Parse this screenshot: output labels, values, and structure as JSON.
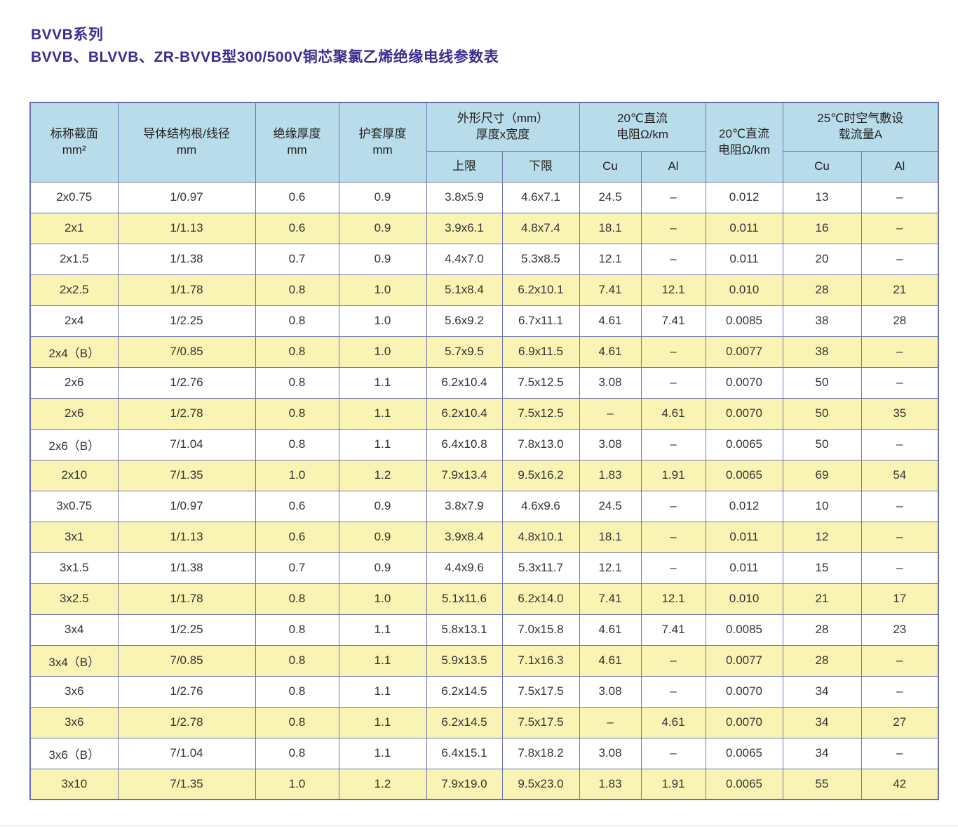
{
  "page": {
    "title_line1": "BVVB系列",
    "title_line2": "BVVB、BLVVB、ZR-BVVB型300/500V铜芯聚氯乙烯绝缘电线参数表"
  },
  "colors": {
    "title": "#3b2d8e",
    "header_bg": "#b9dcea",
    "row_alt_bg": "#faf4b4",
    "row_bg": "#ffffff",
    "border": "#7076b0",
    "outer_border": "#6a70ad"
  },
  "table": {
    "headers": {
      "nominal_section": {
        "line1": "标称截面",
        "line2": "mm²"
      },
      "conductor": {
        "line1": "导体结构根/线径",
        "line2": "mm"
      },
      "insulation": {
        "line1": "绝缘厚度",
        "line2": "mm"
      },
      "sheath": {
        "line1": "护套厚度",
        "line2": "mm"
      },
      "dimensions": {
        "line1": "外形尺寸（mm）",
        "line2": "厚度x宽度",
        "sub_upper": "上限",
        "sub_lower": "下限"
      },
      "dc_resistance": {
        "line1": "20℃直流",
        "line2": "电阻Ω/km",
        "sub_cu": "Cu",
        "sub_al": "Al"
      },
      "dc_resistance2": {
        "line1": "20℃直流",
        "line2": "电阻Ω/km"
      },
      "ampacity": {
        "line1": "25℃时空气敷设",
        "line2": "载流量A",
        "sub_cu": "Cu",
        "sub_al": "Al"
      }
    },
    "rows": [
      [
        "2x0.75",
        "1/0.97",
        "0.6",
        "0.9",
        "3.8x5.9",
        "4.6x7.1",
        "24.5",
        "–",
        "0.012",
        "13",
        "–"
      ],
      [
        "2x1",
        "1/1.13",
        "0.6",
        "0.9",
        "3.9x6.1",
        "4.8x7.4",
        "18.1",
        "–",
        "0.011",
        "16",
        "–"
      ],
      [
        "2x1.5",
        "1/1.38",
        "0.7",
        "0.9",
        "4.4x7.0",
        "5.3x8.5",
        "12.1",
        "–",
        "0.011",
        "20",
        "–"
      ],
      [
        "2x2.5",
        "1/1.78",
        "0.8",
        "1.0",
        "5.1x8.4",
        "6.2x10.1",
        "7.41",
        "12.1",
        "0.010",
        "28",
        "21"
      ],
      [
        "2x4",
        "1/2.25",
        "0.8",
        "1.0",
        "5.6x9.2",
        "6.7x11.1",
        "4.61",
        "7.41",
        "0.0085",
        "38",
        "28"
      ],
      [
        "2x4（B）",
        "7/0.85",
        "0.8",
        "1.0",
        "5.7x9.5",
        "6.9x11.5",
        "4.61",
        "–",
        "0.0077",
        "38",
        "–"
      ],
      [
        "2x6",
        "1/2.76",
        "0.8",
        "1.1",
        "6.2x10.4",
        "7.5x12.5",
        "3.08",
        "–",
        "0.0070",
        "50",
        "–"
      ],
      [
        "2x6",
        "1/2.78",
        "0.8",
        "1.1",
        "6.2x10.4",
        "7.5x12.5",
        "–",
        "4.61",
        "0.0070",
        "50",
        "35"
      ],
      [
        "2x6（B）",
        "7/1.04",
        "0.8",
        "1.1",
        "6.4x10.8",
        "7.8x13.0",
        "3.08",
        "–",
        "0.0065",
        "50",
        "–"
      ],
      [
        "2x10",
        "7/1.35",
        "1.0",
        "1.2",
        "7.9x13.4",
        "9.5x16.2",
        "1.83",
        "1.91",
        "0.0065",
        "69",
        "54"
      ],
      [
        "3x0.75",
        "1/0.97",
        "0.6",
        "0.9",
        "3.8x7.9",
        "4.6x9.6",
        "24.5",
        "–",
        "0.012",
        "10",
        "–"
      ],
      [
        "3x1",
        "1/1.13",
        "0.6",
        "0.9",
        "3.9x8.4",
        "4.8x10.1",
        "18.1",
        "–",
        "0.011",
        "12",
        "–"
      ],
      [
        "3x1.5",
        "1/1.38",
        "0.7",
        "0.9",
        "4.4x9.6",
        "5.3x11.7",
        "12.1",
        "–",
        "0.011",
        "15",
        "–"
      ],
      [
        "3x2.5",
        "1/1.78",
        "0.8",
        "1.0",
        "5.1x11.6",
        "6.2x14.0",
        "7.41",
        "12.1",
        "0.010",
        "21",
        "17"
      ],
      [
        "3x4",
        "1/2.25",
        "0.8",
        "1.1",
        "5.8x13.1",
        "7.0x15.8",
        "4.61",
        "7.41",
        "0.0085",
        "28",
        "23"
      ],
      [
        "3x4（B）",
        "7/0.85",
        "0.8",
        "1.1",
        "5.9x13.5",
        "7.1x16.3",
        "4.61",
        "–",
        "0.0077",
        "28",
        "–"
      ],
      [
        "3x6",
        "1/2.76",
        "0.8",
        "1.1",
        "6.2x14.5",
        "7.5x17.5",
        "3.08",
        "–",
        "0.0070",
        "34",
        "–"
      ],
      [
        "3x6",
        "1/2.78",
        "0.8",
        "1.1",
        "6.2x14.5",
        "7.5x17.5",
        "–",
        "4.61",
        "0.0070",
        "34",
        "27"
      ],
      [
        "3x6（B）",
        "7/1.04",
        "0.8",
        "1.1",
        "6.4x15.1",
        "7.8x18.2",
        "3.08",
        "–",
        "0.0065",
        "34",
        "–"
      ],
      [
        "3x10",
        "7/1.35",
        "1.0",
        "1.2",
        "7.9x19.0",
        "9.5x23.0",
        "1.83",
        "1.91",
        "0.0065",
        "55",
        "42"
      ]
    ],
    "column_names": [
      "nominal-section",
      "conductor-structure",
      "insulation-thickness",
      "sheath-thickness",
      "dim-upper-limit",
      "dim-lower-limit",
      "dc-resistance-cu",
      "dc-resistance-al",
      "dc-resistance-2",
      "ampacity-cu",
      "ampacity-al"
    ]
  }
}
